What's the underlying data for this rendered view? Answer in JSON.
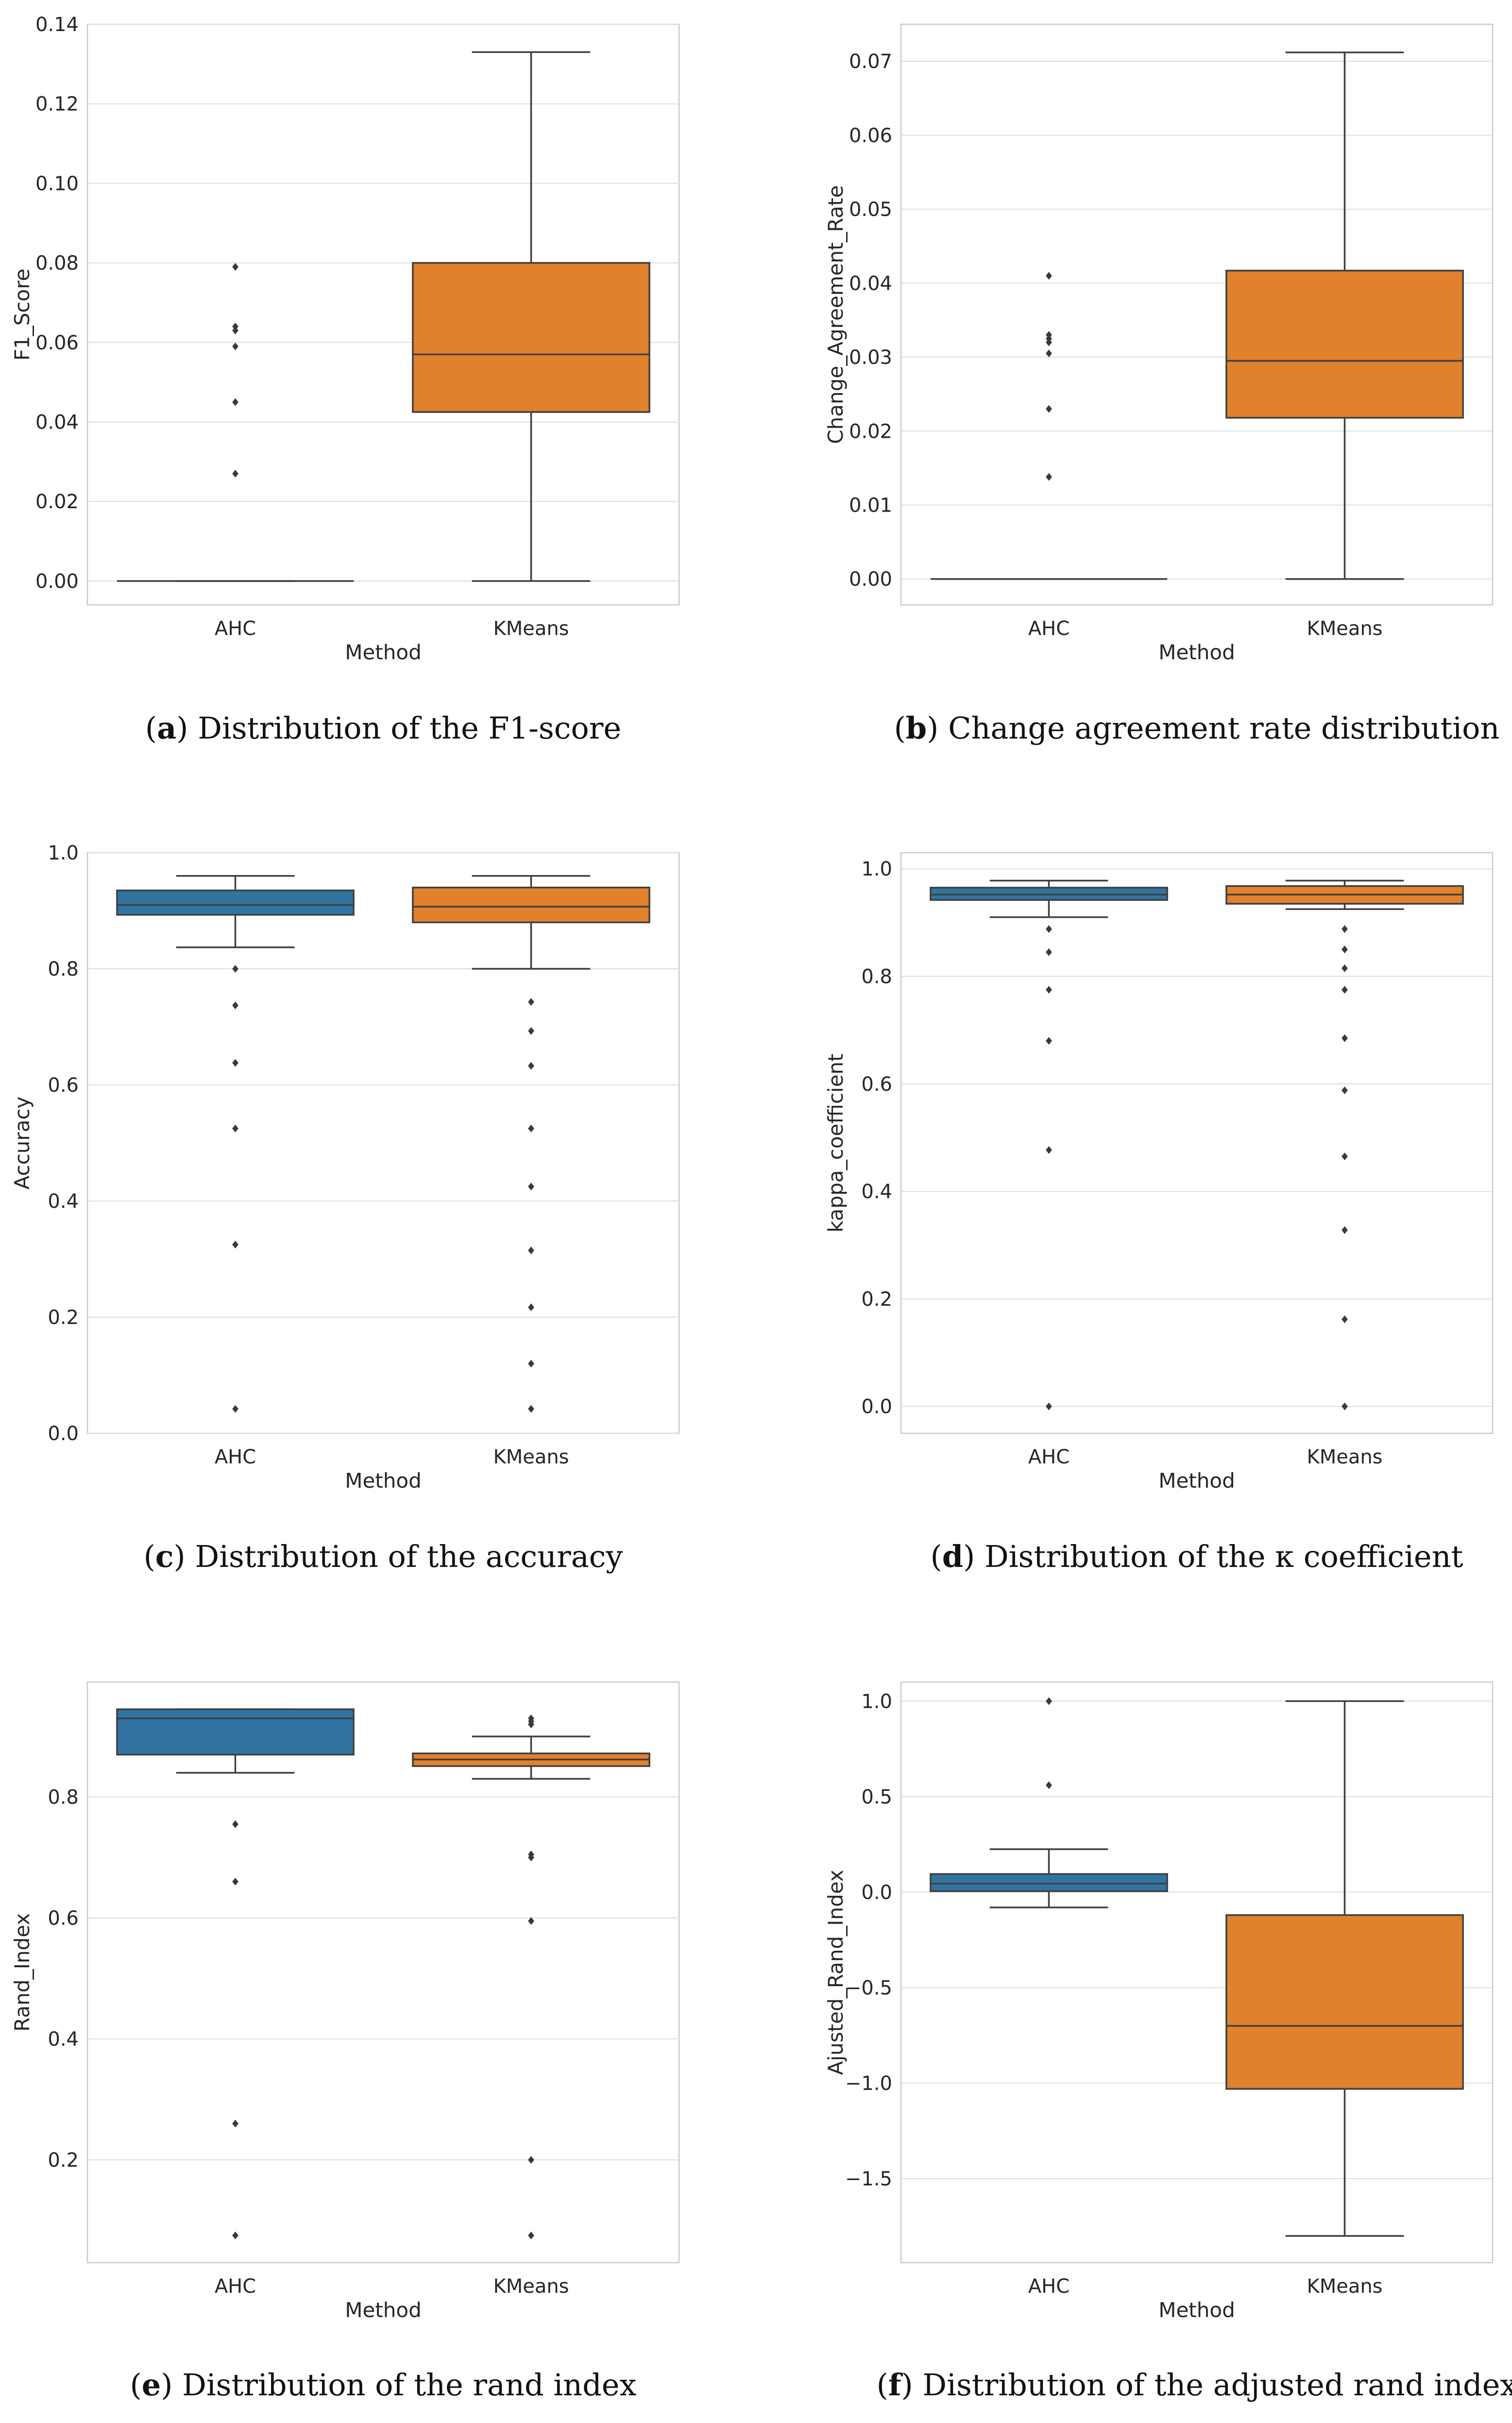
{
  "colors": {
    "ahc": "#3274a1",
    "kmeans": "#e1812c",
    "grid": "#dedede",
    "line": "#3f3f3f"
  },
  "chart_data": [
    {
      "id": "a",
      "type": "box",
      "caption": {
        "letter": "a",
        "text": "Distribution of the F1-score"
      },
      "xlabel": "Method",
      "ylabel": "F1_Score",
      "ylim": [
        -0.006,
        0.14
      ],
      "yticks": [
        0.0,
        0.02,
        0.04,
        0.06,
        0.08,
        0.1,
        0.12,
        0.14
      ],
      "ytick_labels": [
        "0.00",
        "0.02",
        "0.04",
        "0.06",
        "0.08",
        "0.10",
        "0.12",
        "0.14"
      ],
      "categories": [
        "AHC",
        "KMeans"
      ],
      "boxes": [
        {
          "q1": 0.0,
          "median": 0.0,
          "q3": 0.0,
          "whislo": 0.0,
          "whishi": 0.0,
          "fliers": [
            0.079,
            0.064,
            0.063,
            0.059,
            0.045,
            0.027
          ]
        },
        {
          "q1": 0.0425,
          "median": 0.057,
          "q3": 0.08,
          "whislo": 0.0,
          "whishi": 0.133,
          "fliers": []
        }
      ]
    },
    {
      "id": "b",
      "type": "box",
      "caption": {
        "letter": "b",
        "text": "Change agreement rate distribution"
      },
      "xlabel": "Method",
      "ylabel": "Change_Agreement_Rate",
      "ylim": [
        -0.0035,
        0.075
      ],
      "yticks": [
        0.0,
        0.01,
        0.02,
        0.03,
        0.04,
        0.05,
        0.06,
        0.07
      ],
      "ytick_labels": [
        "0.00",
        "0.01",
        "0.02",
        "0.03",
        "0.04",
        "0.05",
        "0.06",
        "0.07"
      ],
      "categories": [
        "AHC",
        "KMeans"
      ],
      "boxes": [
        {
          "q1": 0.0,
          "median": 0.0,
          "q3": 0.0,
          "whislo": 0.0,
          "whishi": 0.0,
          "fliers": [
            0.041,
            0.033,
            0.0325,
            0.032,
            0.0305,
            0.023,
            0.0138
          ]
        },
        {
          "q1": 0.0218,
          "median": 0.0295,
          "q3": 0.0417,
          "whislo": 0.0,
          "whishi": 0.0712,
          "fliers": []
        }
      ]
    },
    {
      "id": "c",
      "type": "box",
      "caption": {
        "letter": "c",
        "text": "Distribution of the accuracy"
      },
      "xlabel": "Method",
      "ylabel": "Accuracy",
      "ylim": [
        0.0,
        1.0
      ],
      "yticks": [
        0.0,
        0.2,
        0.4,
        0.6,
        0.8,
        1.0
      ],
      "ytick_labels": [
        "0.0",
        "0.2",
        "0.4",
        "0.6",
        "0.8",
        "1.0"
      ],
      "categories": [
        "AHC",
        "KMeans"
      ],
      "boxes": [
        {
          "q1": 0.893,
          "median": 0.91,
          "q3": 0.935,
          "whislo": 0.837,
          "whishi": 0.96,
          "fliers": [
            0.8,
            0.737,
            0.638,
            0.525,
            0.325,
            0.042
          ]
        },
        {
          "q1": 0.88,
          "median": 0.907,
          "q3": 0.94,
          "whislo": 0.8,
          "whishi": 0.96,
          "fliers": [
            0.743,
            0.693,
            0.633,
            0.525,
            0.425,
            0.315,
            0.217,
            0.12,
            0.042
          ]
        }
      ]
    },
    {
      "id": "d",
      "type": "box",
      "caption": {
        "letter": "d",
        "text": "Distribution of the κ coefficient"
      },
      "xlabel": "Method",
      "ylabel": "kappa_coefficient",
      "ylim": [
        -0.05,
        1.03
      ],
      "yticks": [
        0.0,
        0.2,
        0.4,
        0.6,
        0.8,
        1.0
      ],
      "ytick_labels": [
        "0.0",
        "0.2",
        "0.4",
        "0.6",
        "0.8",
        "1.0"
      ],
      "categories": [
        "AHC",
        "KMeans"
      ],
      "boxes": [
        {
          "q1": 0.942,
          "median": 0.952,
          "q3": 0.965,
          "whislo": 0.91,
          "whishi": 0.978,
          "fliers": [
            0.888,
            0.845,
            0.775,
            0.68,
            0.477,
            0.0
          ]
        },
        {
          "q1": 0.935,
          "median": 0.952,
          "q3": 0.968,
          "whislo": 0.925,
          "whishi": 0.978,
          "fliers": [
            0.888,
            0.85,
            0.815,
            0.775,
            0.685,
            0.588,
            0.465,
            0.328,
            0.162,
            0.0
          ]
        }
      ]
    },
    {
      "id": "e",
      "type": "box",
      "caption": {
        "letter": "e",
        "text": "Distribution of the rand index"
      },
      "xlabel": "Method",
      "ylabel": "Rand_Index",
      "ylim": [
        0.03,
        0.99
      ],
      "yticks": [
        0.2,
        0.4,
        0.6,
        0.8
      ],
      "ytick_labels": [
        "0.2",
        "0.4",
        "0.6",
        "0.8"
      ],
      "categories": [
        "AHC",
        "KMeans"
      ],
      "boxes": [
        {
          "q1": 0.87,
          "median": 0.93,
          "q3": 0.945,
          "whislo": 0.84,
          "whishi": 0.945,
          "fliers": [
            0.755,
            0.66,
            0.26,
            0.075
          ]
        },
        {
          "q1": 0.851,
          "median": 0.862,
          "q3": 0.872,
          "whislo": 0.83,
          "whishi": 0.9,
          "fliers": [
            0.93,
            0.925,
            0.92,
            0.705,
            0.7,
            0.595,
            0.2,
            0.075
          ]
        }
      ]
    },
    {
      "id": "f",
      "type": "box",
      "caption": {
        "letter": "f",
        "text": "Distribution of the adjusted rand index"
      },
      "xlabel": "Method",
      "ylabel": "Ajusted_Rand_Index",
      "ylim": [
        -1.94,
        1.1
      ],
      "yticks": [
        -1.5,
        -1.0,
        -0.5,
        0.0,
        0.5,
        1.0
      ],
      "ytick_labels": [
        "−1.5",
        "−1.0",
        "−0.5",
        "0.0",
        "0.5",
        "1.0"
      ],
      "categories": [
        "AHC",
        "KMeans"
      ],
      "boxes": [
        {
          "q1": 0.005,
          "median": 0.045,
          "q3": 0.095,
          "whislo": -0.08,
          "whishi": 0.225,
          "fliers": [
            1.0,
            0.56
          ]
        },
        {
          "q1": -1.03,
          "median": -0.7,
          "q3": -0.12,
          "whislo": -1.8,
          "whishi": 1.0,
          "fliers": []
        }
      ]
    }
  ]
}
